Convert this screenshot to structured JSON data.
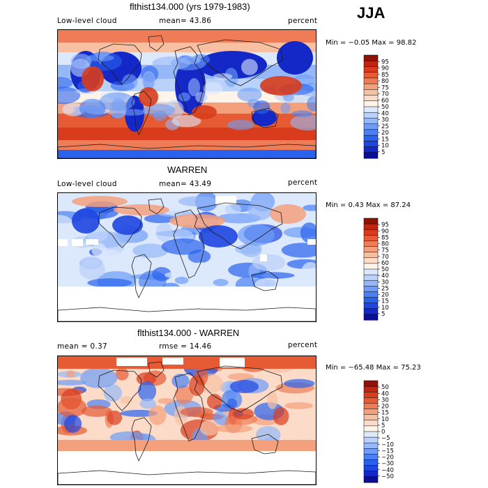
{
  "season": "JJA",
  "colors": {
    "scale": [
      "#0c0e96",
      "#1428c8",
      "#1e46e0",
      "#2a62ee",
      "#4a80f4",
      "#6e9cf6",
      "#96b8f8",
      "#bad2fa",
      "#dce8fc",
      "#fff4ea",
      "#fcdcc8",
      "#f8c0a2",
      "#f4a07c",
      "#ee7c56",
      "#e65a34",
      "#d83c1c",
      "#c02412",
      "#8e1208"
    ],
    "diff_scale": [
      "#0c0e96",
      "#1428c8",
      "#1e46e0",
      "#2a62ee",
      "#4a80f4",
      "#6e9cf6",
      "#96b8f8",
      "#bad2fa",
      "#dce8fc",
      "#fff4ea",
      "#fcdcc8",
      "#f8c0a2",
      "#f4a07c",
      "#ee7c56",
      "#e65a34",
      "#d83c1c",
      "#c02412",
      "#8e1208"
    ],
    "land": "#1a1a1a"
  },
  "panels": [
    {
      "title": "flthist134.000 (yrs 1979-1983)",
      "left_label": "Low-level cloud",
      "middle_label": "mean=  43.86",
      "right_label": "percent",
      "stats": "Min =  −0.05 Max =  98.82",
      "colorbar_ticks": [
        "95",
        "90",
        "85",
        "80",
        "75",
        "70",
        "60",
        "50",
        "40",
        "30",
        "25",
        "20",
        "15",
        "10",
        "5"
      ]
    },
    {
      "title": "WARREN",
      "left_label": "Low-level cloud",
      "middle_label": "mean=  43.49",
      "right_label": "percent",
      "stats": "Min =   0.43 Max =  87.24",
      "colorbar_ticks": [
        "95",
        "90",
        "85",
        "80",
        "75",
        "70",
        "60",
        "50",
        "40",
        "30",
        "25",
        "20",
        "15",
        "10",
        "5"
      ]
    },
    {
      "title": "flthist134.000 - WARREN",
      "left_label": "mean =   0.37",
      "middle_label": "rmse =  14.46",
      "right_label": "percent",
      "stats": "Min = −65.48 Max =  75.23",
      "colorbar_ticks": [
        "50",
        "40",
        "30",
        "20",
        "15",
        "10",
        "5",
        "0",
        "−5",
        "−10",
        "−15",
        "−20",
        "−30",
        "−40",
        "−50"
      ]
    }
  ],
  "chart_data": [
    {
      "type": "heatmap",
      "title": "flthist134.000 (yrs 1979-1983)",
      "variable": "Low-level cloud",
      "units": "percent",
      "season": "JJA",
      "mean": 43.86,
      "min": -0.05,
      "max": 98.82,
      "contour_levels": [
        5,
        10,
        15,
        20,
        25,
        30,
        40,
        50,
        60,
        70,
        75,
        80,
        85,
        90,
        95
      ]
    },
    {
      "type": "heatmap",
      "title": "WARREN",
      "variable": "Low-level cloud",
      "units": "percent",
      "season": "JJA",
      "mean": 43.49,
      "min": 0.43,
      "max": 87.24,
      "contour_levels": [
        5,
        10,
        15,
        20,
        25,
        30,
        40,
        50,
        60,
        70,
        75,
        80,
        85,
        90,
        95
      ]
    },
    {
      "type": "heatmap",
      "title": "flthist134.000 - WARREN",
      "units": "percent",
      "season": "JJA",
      "mean": 0.37,
      "rmse": 14.46,
      "min": -65.48,
      "max": 75.23,
      "contour_levels": [
        -50,
        -40,
        -30,
        -20,
        -15,
        -10,
        -5,
        0,
        5,
        10,
        15,
        20,
        30,
        40,
        50
      ]
    }
  ]
}
